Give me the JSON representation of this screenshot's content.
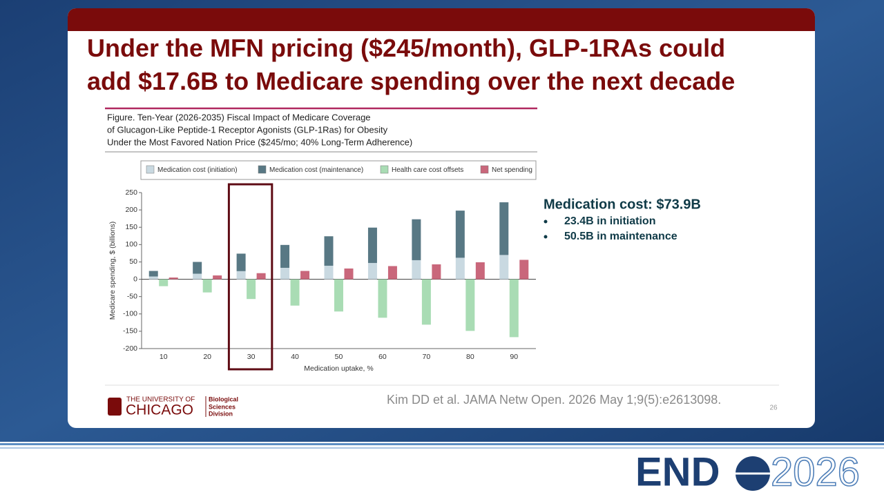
{
  "slide": {
    "title_lines": [
      "Under the MFN pricing ($245/month), GLP-1RAs could",
      "add $17.6B to Medicare spending over the next decade"
    ]
  },
  "figure_caption": [
    "Figure. Ten-Year (2026-2035) Fiscal Impact of Medicare Coverage",
    "of Glucagon-Like Peptide-1 Receptor Agonists (GLP-1Ras) for Obesity",
    "Under the Most Favored Nation Price ($245/mo; 40% Long-Term Adherence)"
  ],
  "chart_data": {
    "type": "bar",
    "stacked": true,
    "x_label": "Medication uptake, %",
    "y_label": "Medicare spending, $ (billions)",
    "categories": [
      "10",
      "20",
      "30",
      "40",
      "50",
      "60",
      "70",
      "80",
      "90"
    ],
    "series": [
      {
        "name": "Medication cost (initiation)",
        "color": "#c9d9e1",
        "stack": "cost",
        "values": [
          8,
          16,
          23.4,
          33,
          39,
          47,
          55,
          62,
          70
        ]
      },
      {
        "name": "Medication cost (maintenance)",
        "color": "#587884",
        "stack": "cost",
        "values": [
          16,
          34,
          50.5,
          66,
          85,
          102,
          118,
          136,
          152
        ]
      },
      {
        "name": "Health care cost offsets",
        "color": "#a9dcb4",
        "stack": "offsets",
        "values": [
          -20,
          -38,
          -57,
          -76,
          -93,
          -111,
          -131,
          -149,
          -167
        ]
      },
      {
        "name": "Net spending",
        "color": "#c9677b",
        "stack": "net",
        "values": [
          5,
          11,
          17.6,
          24,
          31,
          38,
          43,
          49,
          56
        ]
      }
    ],
    "ylim": [
      -200,
      250
    ],
    "yticks": [
      -200,
      -150,
      -100,
      -50,
      0,
      50,
      100,
      150,
      200,
      250
    ],
    "grid": false
  },
  "callout": {
    "heading": "Medication cost: $73.9B",
    "bullets": [
      "23.4B in initiation",
      "50.5B in maintenance"
    ]
  },
  "footer": {
    "university": [
      "THE UNIVERSITY OF",
      "CHICAGO"
    ],
    "division": [
      "Biological",
      "Sciences",
      "Division"
    ],
    "citation": "Kim DD et al. JAMA Netw Open. 2026 May 1;9(5):e2613098.",
    "page_number": "26"
  },
  "banner": {
    "logo": [
      "END",
      "2026"
    ]
  }
}
